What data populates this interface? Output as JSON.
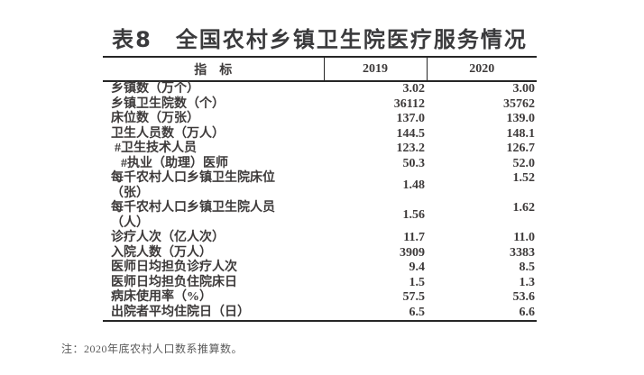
{
  "title": "表8　全国农村乡镇卫生院医疗服务情况",
  "table": {
    "headers": [
      "指　标",
      "2019",
      "2020"
    ],
    "rows": [
      {
        "label": "乡镇数（万个）",
        "y2019": "3.02",
        "y2020": "3.00"
      },
      {
        "label": "乡镇卫生院数（个）",
        "y2019": "36112",
        "y2020": "35762"
      },
      {
        "label": "床位数（万张）",
        "y2019": "137.0",
        "y2020": "139.0"
      },
      {
        "label": "卫生人员数（万人）",
        "y2019": "144.5",
        "y2020": "148.1"
      },
      {
        "label": "#卫生技术人员",
        "y2019": "123.2",
        "y2020": "126.7"
      },
      {
        "label": "#执业（助理）医师",
        "y2019": "50.3",
        "y2020": "52.0"
      },
      {
        "label": "每千农村人口乡镇卫生院床位",
        "label2": "（张）",
        "y2019": "1.48",
        "y2020": "1.52"
      },
      {
        "label": "每千农村人口乡镇卫生院人员",
        "label2": "（人）",
        "y2019": "1.56",
        "y2020": "1.62"
      },
      {
        "label": "诊疗人次（亿人次）",
        "y2019": "11.7",
        "y2020": "11.0"
      },
      {
        "label": "入院人数（万人）",
        "y2019": "3909",
        "y2020": "3383"
      },
      {
        "label": "医师日均担负诊疗人次",
        "y2019": "9.4",
        "y2020": "8.5"
      },
      {
        "label": "医师日均担负住院床日",
        "y2019": "1.5",
        "y2020": "1.3"
      },
      {
        "label": "病床使用率（%）",
        "y2019": "57.5",
        "y2020": "53.6"
      },
      {
        "label": "出院者平均住院日（日）",
        "y2019": "6.5",
        "y2020": "6.6"
      }
    ]
  },
  "footnote": "注：2020年底农村人口数系推算数。",
  "colors": {
    "text": "#3d3a3a",
    "border": "#262626",
    "note": "#5a5a5a",
    "background": "#ffffff"
  }
}
